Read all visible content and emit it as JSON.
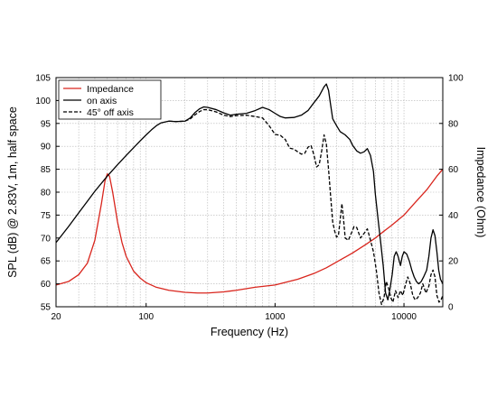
{
  "chart_data": {
    "type": "line",
    "xlabel": "Frequency (Hz)",
    "ylabel": "SPL (dB) @ 2.83V, 1m, half space",
    "y2label": "Impedance (Ohm)",
    "xscale": "log",
    "xlim": [
      20,
      20000
    ],
    "ylim": [
      55,
      105
    ],
    "y2lim": [
      0,
      100
    ],
    "x_ticks": [
      {
        "value": 20,
        "label": "20"
      },
      {
        "value": 100,
        "label": "100"
      },
      {
        "value": 1000,
        "label": "1000"
      },
      {
        "value": 10000,
        "label": "10000"
      }
    ],
    "y_ticks": [
      55,
      60,
      65,
      70,
      75,
      80,
      85,
      90,
      95,
      100,
      105
    ],
    "y2_ticks": [
      0,
      20,
      40,
      60,
      80,
      100
    ],
    "grid": true,
    "legend": "top-left",
    "series": [
      {
        "name": "Impedance",
        "axis": "right",
        "color": "#d9251d",
        "style": "solid",
        "points": [
          [
            20,
            9.5
          ],
          [
            25,
            11
          ],
          [
            30,
            14
          ],
          [
            35,
            19
          ],
          [
            40,
            29
          ],
          [
            45,
            45
          ],
          [
            48,
            55
          ],
          [
            50,
            58
          ],
          [
            52,
            57
          ],
          [
            55,
            50
          ],
          [
            60,
            37
          ],
          [
            65,
            28
          ],
          [
            70,
            22
          ],
          [
            80,
            15.5
          ],
          [
            90,
            12.5
          ],
          [
            100,
            10.5
          ],
          [
            120,
            8.5
          ],
          [
            150,
            7.2
          ],
          [
            200,
            6.3
          ],
          [
            250,
            6
          ],
          [
            300,
            6
          ],
          [
            400,
            6.5
          ],
          [
            500,
            7.2
          ],
          [
            700,
            8.5
          ],
          [
            1000,
            9.5
          ],
          [
            1500,
            12
          ],
          [
            2000,
            14.5
          ],
          [
            2500,
            17
          ],
          [
            3000,
            19.5
          ],
          [
            4000,
            23.5
          ],
          [
            5000,
            27
          ],
          [
            6000,
            30
          ],
          [
            7000,
            33
          ],
          [
            8000,
            35.5
          ],
          [
            10000,
            40
          ],
          [
            12000,
            45
          ],
          [
            15000,
            51
          ],
          [
            18000,
            57
          ],
          [
            20000,
            60
          ]
        ]
      },
      {
        "name": "on axis",
        "axis": "left",
        "color": "#000000",
        "style": "solid",
        "points": [
          [
            20,
            69
          ],
          [
            25,
            72.5
          ],
          [
            30,
            75.5
          ],
          [
            35,
            78
          ],
          [
            40,
            80.2
          ],
          [
            50,
            83.5
          ],
          [
            60,
            86
          ],
          [
            70,
            88
          ],
          [
            80,
            89.7
          ],
          [
            90,
            91.2
          ],
          [
            100,
            92.5
          ],
          [
            110,
            93.6
          ],
          [
            120,
            94.5
          ],
          [
            130,
            95.1
          ],
          [
            150,
            95.5
          ],
          [
            170,
            95.4
          ],
          [
            200,
            95.5
          ],
          [
            220,
            96.2
          ],
          [
            240,
            97.4
          ],
          [
            260,
            98.2
          ],
          [
            280,
            98.6
          ],
          [
            300,
            98.5
          ],
          [
            350,
            98
          ],
          [
            400,
            97.3
          ],
          [
            450,
            96.8
          ],
          [
            500,
            97
          ],
          [
            600,
            97.2
          ],
          [
            700,
            97.8
          ],
          [
            800,
            98.5
          ],
          [
            900,
            98
          ],
          [
            1000,
            97.2
          ],
          [
            1100,
            96.5
          ],
          [
            1200,
            96.2
          ],
          [
            1400,
            96.3
          ],
          [
            1600,
            96.8
          ],
          [
            1800,
            97.8
          ],
          [
            2000,
            99.5
          ],
          [
            2200,
            101
          ],
          [
            2400,
            103
          ],
          [
            2500,
            103.6
          ],
          [
            2600,
            102.2
          ],
          [
            2700,
            99
          ],
          [
            2800,
            96
          ],
          [
            3000,
            94.5
          ],
          [
            3200,
            93.2
          ],
          [
            3500,
            92.5
          ],
          [
            3800,
            91.5
          ],
          [
            4000,
            90.2
          ],
          [
            4300,
            89
          ],
          [
            4600,
            88.5
          ],
          [
            4900,
            88.8
          ],
          [
            5200,
            89.5
          ],
          [
            5500,
            88
          ],
          [
            5800,
            84.5
          ],
          [
            6000,
            79.5
          ],
          [
            6300,
            74
          ],
          [
            6600,
            69
          ],
          [
            6900,
            64
          ],
          [
            7200,
            58
          ],
          [
            7500,
            56.5
          ],
          [
            7800,
            59
          ],
          [
            8100,
            62
          ],
          [
            8400,
            66
          ],
          [
            8700,
            67
          ],
          [
            9000,
            66
          ],
          [
            9400,
            64
          ],
          [
            9700,
            66
          ],
          [
            10000,
            67
          ],
          [
            10500,
            66.5
          ],
          [
            11000,
            65
          ],
          [
            11500,
            63
          ],
          [
            12000,
            61.5
          ],
          [
            12500,
            60.5
          ],
          [
            13000,
            60
          ],
          [
            13600,
            60.5
          ],
          [
            14200,
            61.5
          ],
          [
            15000,
            63
          ],
          [
            15600,
            66
          ],
          [
            16200,
            70
          ],
          [
            16800,
            71.8
          ],
          [
            17400,
            70.5
          ],
          [
            18000,
            67
          ],
          [
            18600,
            63
          ],
          [
            19200,
            61
          ],
          [
            20000,
            60
          ]
        ]
      },
      {
        "name": "45° off axis",
        "axis": "left",
        "color": "#000000",
        "style": "dashed",
        "points": [
          [
            150,
            95.5
          ],
          [
            170,
            95.4
          ],
          [
            200,
            95.5
          ],
          [
            220,
            96
          ],
          [
            240,
            96.9
          ],
          [
            260,
            97.6
          ],
          [
            280,
            98
          ],
          [
            300,
            98
          ],
          [
            350,
            97.5
          ],
          [
            400,
            96.8
          ],
          [
            450,
            96.5
          ],
          [
            500,
            96.7
          ],
          [
            600,
            96.8
          ],
          [
            700,
            96.5
          ],
          [
            800,
            96.2
          ],
          [
            900,
            94.5
          ],
          [
            1000,
            92.6
          ],
          [
            1100,
            92.4
          ],
          [
            1200,
            91.5
          ],
          [
            1300,
            89.6
          ],
          [
            1400,
            89.4
          ],
          [
            1500,
            88.8
          ],
          [
            1600,
            88.3
          ],
          [
            1700,
            88.5
          ],
          [
            1800,
            89.8
          ],
          [
            1900,
            90.2
          ],
          [
            2000,
            88.2
          ],
          [
            2100,
            85.5
          ],
          [
            2200,
            86
          ],
          [
            2300,
            89
          ],
          [
            2400,
            92.5
          ],
          [
            2500,
            90.5
          ],
          [
            2600,
            85
          ],
          [
            2700,
            79
          ],
          [
            2800,
            73.5
          ],
          [
            2900,
            71.5
          ],
          [
            3000,
            70.2
          ],
          [
            3100,
            70.5
          ],
          [
            3200,
            74
          ],
          [
            3300,
            77.5
          ],
          [
            3400,
            74
          ],
          [
            3500,
            70
          ],
          [
            3700,
            69.5
          ],
          [
            3900,
            71
          ],
          [
            4100,
            72.5
          ],
          [
            4300,
            72.3
          ],
          [
            4600,
            70
          ],
          [
            4900,
            71
          ],
          [
            5200,
            72
          ],
          [
            5500,
            69.5
          ],
          [
            5800,
            67
          ],
          [
            6100,
            63
          ],
          [
            6400,
            58
          ],
          [
            6700,
            55.5
          ],
          [
            7000,
            57
          ],
          [
            7300,
            60.5
          ],
          [
            7600,
            59
          ],
          [
            7900,
            57
          ],
          [
            8200,
            56
          ],
          [
            8600,
            58.5
          ],
          [
            9000,
            57
          ],
          [
            9400,
            58.5
          ],
          [
            9800,
            57.5
          ],
          [
            10200,
            59.5
          ],
          [
            10700,
            61.5
          ],
          [
            11200,
            60
          ],
          [
            11700,
            57.5
          ],
          [
            12200,
            56.5
          ],
          [
            12800,
            57
          ],
          [
            13400,
            58
          ],
          [
            14000,
            60
          ],
          [
            14800,
            58
          ],
          [
            15600,
            59.5
          ],
          [
            16200,
            62
          ],
          [
            16800,
            63
          ],
          [
            17400,
            61.5
          ],
          [
            18000,
            57.5
          ],
          [
            18700,
            56
          ],
          [
            19400,
            56.5
          ],
          [
            20000,
            57.5
          ]
        ]
      }
    ]
  }
}
